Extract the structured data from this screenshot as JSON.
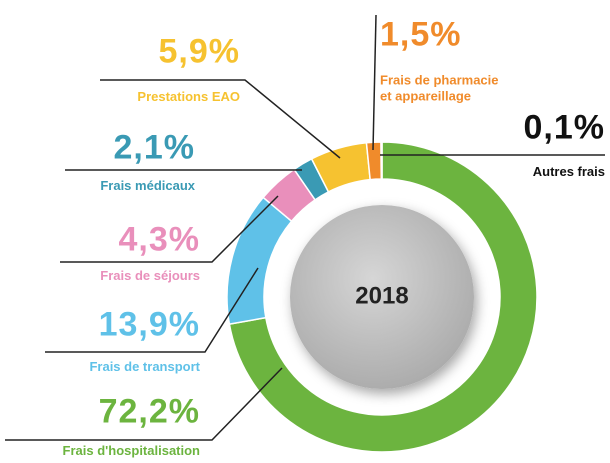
{
  "chart_data": {
    "type": "pie",
    "donut": true,
    "center_label": "2018",
    "categories": [
      "Frais d'hospitalisation",
      "Frais de transport",
      "Frais de séjours",
      "Frais médicaux",
      "Prestations EAO",
      "Frais de pharmacie\net appareillage",
      "Autres frais"
    ],
    "values": [
      72.2,
      13.9,
      4.3,
      2.1,
      5.9,
      1.5,
      0.1
    ],
    "value_labels": [
      "72,2%",
      "13,9%",
      "4,3%",
      "2,1%",
      "5,9%",
      "1,5%",
      "0,1%"
    ],
    "colors": [
      "#6cb43f",
      "#5fc1e8",
      "#e98fbb",
      "#3a9ab4",
      "#f6c230",
      "#f08b2b",
      "#9a9a9a"
    ],
    "label_colors": [
      "#6cb43f",
      "#5fc1e8",
      "#e98fbb",
      "#3a9ab4",
      "#f6c230",
      "#f08b2b",
      "#111111"
    ]
  }
}
